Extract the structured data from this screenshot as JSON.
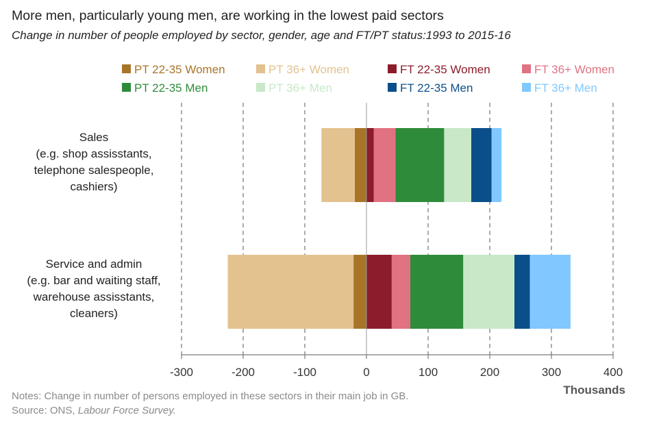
{
  "chart_data": {
    "type": "bar",
    "orientation": "horizontal",
    "stacked": "diverging",
    "title": "More men, particularly young men, are working in the lowest paid sectors",
    "subtitle": "Change in number of people employed by sector, gender, age and FT/PT status:1993 to 2015-16",
    "xlabel": "Thousands",
    "ylabel": "",
    "xlim": [
      -300,
      400
    ],
    "xticks": [
      "-300",
      "-200",
      "-100",
      "0",
      "100",
      "200",
      "300",
      "400"
    ],
    "xtick_values": [
      -300,
      -200,
      -100,
      0,
      100,
      200,
      300,
      400
    ],
    "grid": "vertical dashed",
    "legend_position": "top",
    "categories": [
      {
        "lines": [
          "Sales",
          "(e.g. shop assisstants,",
          "telephone salespeople,",
          "cashiers)"
        ]
      },
      {
        "lines": [
          "Service and admin",
          "(e.g. bar and waiting staff,",
          "warehouse assisstants,",
          "cleaners)"
        ]
      }
    ],
    "series": [
      {
        "name": "PT 22-35 Women",
        "color": "#a87528",
        "values": [
          -19,
          -21
        ]
      },
      {
        "name": "PT 36+ Women",
        "color": "#e3c28f",
        "values": [
          -54,
          -204
        ]
      },
      {
        "name": "FT 22-35 Women",
        "color": "#8c1c2b",
        "values": [
          12,
          41
        ]
      },
      {
        "name": "FT 36+ Women",
        "color": "#e07282",
        "values": [
          35,
          30
        ]
      },
      {
        "name": "PT 22-35 Men",
        "color": "#2e8b3a",
        "values": [
          79,
          86
        ]
      },
      {
        "name": "PT 36+ Men",
        "color": "#c8e8c8",
        "values": [
          44,
          83
        ]
      },
      {
        "name": "FT 22-35 Men",
        "color": "#0b4f8a",
        "values": [
          33,
          25
        ]
      },
      {
        "name": "FT 36+ Men",
        "color": "#80c8ff",
        "values": [
          16,
          66
        ]
      }
    ]
  },
  "notes": "Notes: Change in number of persons employed in these sectors in their main job in GB.",
  "source_prefix": "Source: ONS, ",
  "source_title": "Labour Force Survey."
}
